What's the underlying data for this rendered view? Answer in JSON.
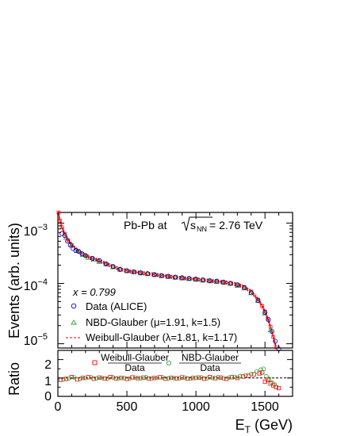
{
  "chart_data": [
    {
      "type": "scatter",
      "title": "",
      "annotation": {
        "system_prefix": "Pb-Pb at ",
        "sqrt_s": "s",
        "sqrt_s_sub": "NN",
        "energy_suffix": " = 2.76 TeV",
        "x_value": "x = 0.799"
      },
      "ylabel": "Events (arb. units)",
      "yscale": "log",
      "ylim": [
        8.5e-06,
        0.0015
      ],
      "xlim": [
        0,
        1700
      ],
      "y_tick_labels": [
        {
          "base": "10",
          "exp": "−3",
          "value": 0.001
        },
        {
          "base": "10",
          "exp": "−4",
          "value": 0.0001
        },
        {
          "base": "10",
          "exp": "−5",
          "value": 1e-05
        }
      ],
      "legend": {
        "placement": "bottom-left",
        "entries": [
          {
            "text": "Data (ALICE)",
            "marker": "open-circle",
            "color": "#0000cc"
          },
          {
            "text": "NBD-Glauber (μ=1.91, k=1.5)",
            "marker": "open-triangle",
            "color": "#2ca02c"
          },
          {
            "text": "Weibull-Glauber (λ=1.81, k=1.17)",
            "marker": "dashed-line",
            "color": "#ff0000"
          }
        ]
      },
      "series": [
        {
          "name": "Data (ALICE)",
          "color": "#0000cc",
          "x": [
            30,
            50,
            70,
            90,
            110,
            130,
            150,
            175,
            200,
            250,
            300,
            350,
            400,
            450,
            500,
            550,
            600,
            650,
            700,
            750,
            800,
            850,
            900,
            950,
            1000,
            1050,
            1100,
            1150,
            1200,
            1250,
            1300,
            1350,
            1400,
            1450,
            1500,
            1525,
            1550,
            1575,
            1600
          ],
          "y": [
            0.00067,
            0.00062,
            0.0005,
            0.00043,
            0.00038,
            0.00035,
            0.00034,
            0.00031,
            0.00029,
            0.00026,
            0.00024,
            0.00021,
            0.00019,
            0.00017,
            0.000162,
            0.000156,
            0.00015,
            0.000145,
            0.00014,
            0.000135,
            0.000131,
            0.000127,
            0.000124,
            0.000121,
            0.000118,
            0.000114,
            0.000111,
            0.000109,
            0.000105,
            0.0001,
            9.5e-05,
            8.5e-05,
            7e-05,
            5.2e-05,
            3.3e-05,
            2.5e-05,
            1.6e-05,
            1.1e-05,
            8.2e-06
          ]
        },
        {
          "name": "NBD-Glauber (μ=1.91, k=1.5)",
          "color": "#2ca02c",
          "x": [
            60,
            100,
            140,
            180,
            220,
            260,
            300,
            350,
            400,
            450,
            500,
            550,
            600,
            650,
            700,
            750,
            800,
            850,
            900,
            950,
            1000,
            1050,
            1100,
            1150,
            1200,
            1250,
            1300,
            1350,
            1400,
            1450,
            1500,
            1540
          ],
          "y": [
            0.00058,
            0.00044,
            0.00035,
            0.0003,
            0.00027,
            0.00025,
            0.00023,
            0.00021,
            0.000188,
            0.000172,
            0.000162,
            0.000155,
            0.000149,
            0.000145,
            0.000139,
            0.000134,
            0.00013,
            0.000126,
            0.000123,
            0.00012,
            0.000117,
            0.000113,
            0.00011,
            0.000107,
            0.000104,
            0.0001,
            9.3e-05,
            8.4e-05,
            7e-05,
            5.2e-05,
            3.2e-05,
            1.7e-05
          ]
        },
        {
          "name": "Weibull-Glauber (λ=1.81, k=1.17)",
          "color": "#ff0000",
          "x": [
            5,
            15,
            30,
            50,
            75,
            100,
            150,
            200,
            250,
            300,
            350,
            400,
            450,
            500,
            550,
            600,
            650,
            700,
            750,
            800,
            850,
            900,
            950,
            1000,
            1050,
            1100,
            1150,
            1200,
            1250,
            1300,
            1350,
            1400,
            1450,
            1480,
            1500,
            1520,
            1540,
            1560,
            1580
          ],
          "y": [
            0.0015,
            0.0011,
            0.00085,
            0.00066,
            0.00052,
            0.00043,
            0.00034,
            0.00029,
            0.000258,
            0.00024,
            0.00021,
            0.00019,
            0.000172,
            0.000162,
            0.000155,
            0.00015,
            0.000145,
            0.00014,
            0.000135,
            0.000131,
            0.000127,
            0.000123,
            0.00012,
            0.000117,
            0.000114,
            0.000111,
            0.000108,
            0.000105,
            0.000101,
            9.6e-05,
            8.7e-05,
            7.3e-05,
            5.4e-05,
            4.2e-05,
            3.4e-05,
            2.6e-05,
            1.9e-05,
            1.3e-05,
            8.8e-06
          ]
        }
      ]
    },
    {
      "type": "scatter",
      "xlabel_main": "E",
      "xlabel_sub": "T",
      "xlabel_unit": " (GeV)",
      "ylabel": "Ratio",
      "xlim": [
        0,
        1700
      ],
      "ylim": [
        0,
        2.5
      ],
      "x_tick_labels": [
        "0",
        "500",
        "1000",
        "1500"
      ],
      "y_tick_labels": [
        "0",
        "1",
        "2"
      ],
      "reference_line": 1,
      "legend": {
        "placement": "top",
        "entries": [
          {
            "numerator": "Weibull-Glauber",
            "denominator": "Data",
            "marker": "open-square",
            "color": "#ff0000"
          },
          {
            "numerator": "NBD-Glauber",
            "denominator": "Data",
            "marker": "open-circle",
            "color": "#2ca02c"
          }
        ]
      },
      "series": [
        {
          "name": "Weibull-Glauber",
          "color": "#ff0000",
          "x": [
            20,
            60,
            100,
            140,
            180,
            220,
            260,
            300,
            340,
            380,
            420,
            460,
            500,
            540,
            580,
            620,
            660,
            700,
            740,
            780,
            820,
            860,
            900,
            940,
            980,
            1020,
            1060,
            1100,
            1140,
            1180,
            1220,
            1260,
            1300,
            1340,
            1380,
            1420,
            1460,
            1480,
            1500,
            1520,
            1540,
            1560,
            1580,
            1600
          ],
          "y": [
            0.9,
            0.95,
            1.05,
            0.92,
            1.0,
            1.04,
            0.96,
            1.02,
            0.97,
            1.05,
            0.98,
            1.0,
            0.95,
            1.03,
            0.99,
            1.02,
            0.97,
            1.0,
            1.04,
            0.96,
            1.01,
            0.98,
            1.03,
            0.97,
            1.0,
            1.02,
            0.96,
            1.05,
            0.99,
            1.02,
            0.95,
            1.04,
            1.0,
            1.08,
            1.12,
            1.2,
            1.25,
            1.3,
            0.8,
            0.9,
            0.7,
            0.6,
            0.5,
            0.45
          ]
        },
        {
          "name": "NBD-Glauber",
          "color": "#2ca02c",
          "x": [
            40,
            80,
            120,
            160,
            200,
            240,
            280,
            320,
            360,
            400,
            440,
            480,
            520,
            560,
            600,
            640,
            680,
            720,
            760,
            800,
            840,
            880,
            920,
            960,
            1000,
            1040,
            1080,
            1120,
            1160,
            1200,
            1240,
            1280,
            1320,
            1360,
            1400,
            1440,
            1470,
            1490,
            1510,
            1530,
            1550,
            1570
          ],
          "y": [
            0.92,
            0.98,
            1.02,
            0.95,
            1.0,
            1.05,
            0.97,
            1.01,
            0.96,
            1.03,
            0.99,
            1.0,
            0.97,
            1.02,
            0.98,
            1.04,
            0.96,
            1.01,
            1.03,
            0.97,
            1.0,
            0.98,
            1.02,
            0.96,
            1.01,
            1.03,
            0.98,
            1.0,
            1.04,
            0.97,
            1.02,
            1.06,
            1.1,
            1.15,
            1.22,
            1.35,
            1.45,
            1.5,
            1.1,
            0.95,
            0.75,
            0.65
          ]
        }
      ]
    }
  ]
}
